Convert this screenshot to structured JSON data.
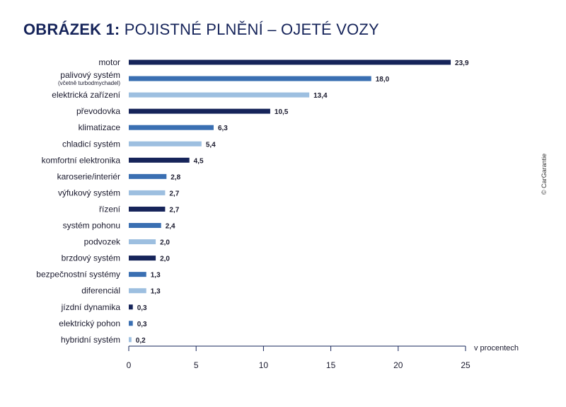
{
  "title_prefix": "OBRÁZEK 1:",
  "title_main": "POJISTNÉ PLNĚNÍ – OJETÉ VOZY",
  "copyright": "© CarGarantie",
  "colors": {
    "dark": "#16245a",
    "mid": "#3a6fb2",
    "light": "#9dbfe0"
  },
  "chart_data": {
    "type": "bar",
    "orientation": "horizontal",
    "title": "OBRÁZEK 1: POJISTNÉ PLNĚNÍ – OJETÉ VOZY",
    "xlabel": "v procentech",
    "ylabel": "",
    "xlim": [
      0,
      25
    ],
    "x_ticks": [
      0,
      5,
      10,
      15,
      20,
      25
    ],
    "x_tick_labels": [
      "0",
      "5",
      "10",
      "15",
      "20",
      "25"
    ],
    "grid": false,
    "categories": [
      {
        "label": "motor",
        "sublabel": "",
        "value": 23.9,
        "value_label": "23,9",
        "shade": "dark"
      },
      {
        "label": "palivový systém",
        "sublabel": "(včetně turbodmychadel)",
        "value": 18.0,
        "value_label": "18,0",
        "shade": "mid"
      },
      {
        "label": "elektrická zařízení",
        "sublabel": "",
        "value": 13.4,
        "value_label": "13,4",
        "shade": "light"
      },
      {
        "label": "převodovka",
        "sublabel": "",
        "value": 10.5,
        "value_label": "10,5",
        "shade": "dark"
      },
      {
        "label": "klimatizace",
        "sublabel": "",
        "value": 6.3,
        "value_label": "6,3",
        "shade": "mid"
      },
      {
        "label": "chladicí systém",
        "sublabel": "",
        "value": 5.4,
        "value_label": "5,4",
        "shade": "light"
      },
      {
        "label": "komfortní elektronika",
        "sublabel": "",
        "value": 4.5,
        "value_label": "4,5",
        "shade": "dark"
      },
      {
        "label": "karoserie/interiér",
        "sublabel": "",
        "value": 2.8,
        "value_label": "2,8",
        "shade": "mid"
      },
      {
        "label": "výfukový systém",
        "sublabel": "",
        "value": 2.7,
        "value_label": "2,7",
        "shade": "light"
      },
      {
        "label": "řízení",
        "sublabel": "",
        "value": 2.7,
        "value_label": "2,7",
        "shade": "dark"
      },
      {
        "label": "systém pohonu",
        "sublabel": "",
        "value": 2.4,
        "value_label": "2,4",
        "shade": "mid"
      },
      {
        "label": "podvozek",
        "sublabel": "",
        "value": 2.0,
        "value_label": "2,0",
        "shade": "light"
      },
      {
        "label": "brzdový systém",
        "sublabel": "",
        "value": 2.0,
        "value_label": "2,0",
        "shade": "dark"
      },
      {
        "label": "bezpečnostní systémy",
        "sublabel": "",
        "value": 1.3,
        "value_label": "1,3",
        "shade": "mid"
      },
      {
        "label": "diferenciál",
        "sublabel": "",
        "value": 1.3,
        "value_label": "1,3",
        "shade": "light"
      },
      {
        "label": "jízdní dynamika",
        "sublabel": "",
        "value": 0.3,
        "value_label": "0,3",
        "shade": "dark"
      },
      {
        "label": "elektrický pohon",
        "sublabel": "",
        "value": 0.3,
        "value_label": "0,3",
        "shade": "mid"
      },
      {
        "label": "hybridní systém",
        "sublabel": "",
        "value": 0.2,
        "value_label": "0,2",
        "shade": "light"
      }
    ]
  }
}
